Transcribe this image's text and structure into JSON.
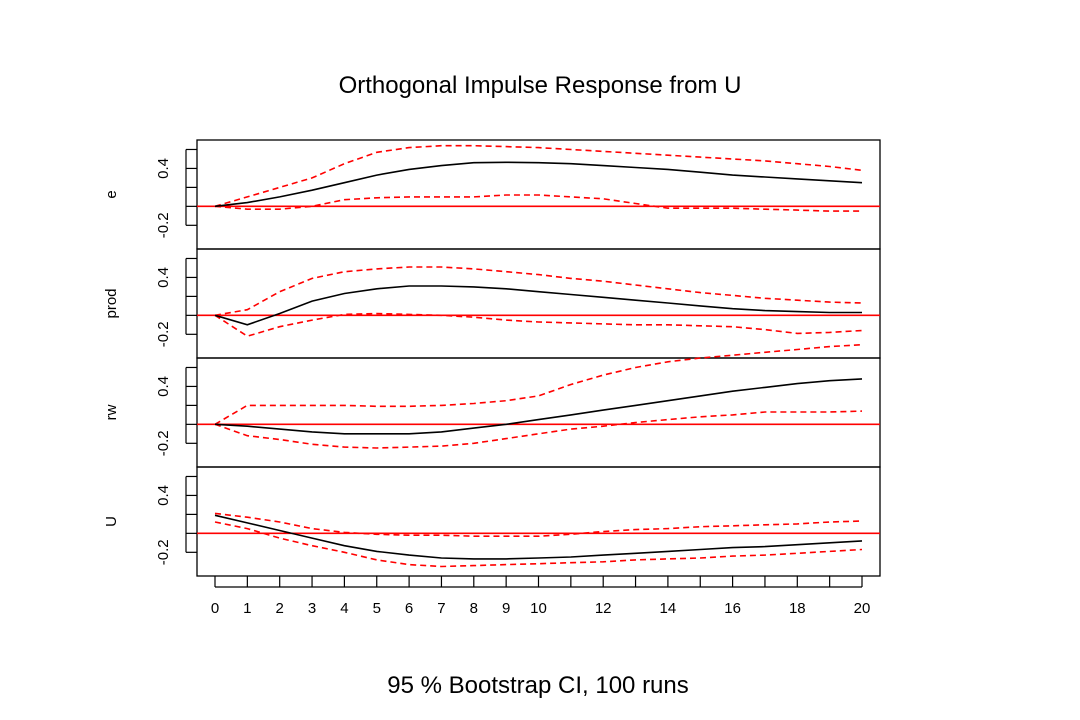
{
  "chart_data": {
    "type": "line",
    "title": "Orthogonal Impulse Response from U",
    "xlabel": "95 % Bootstrap CI,  100 runs",
    "x": [
      0,
      1,
      2,
      3,
      4,
      5,
      6,
      7,
      8,
      9,
      10,
      11,
      12,
      13,
      14,
      15,
      16,
      17,
      18,
      19,
      20
    ],
    "x_tick_labels": [
      "0",
      "1",
      "2",
      "3",
      "4",
      "5",
      "6",
      "7",
      "8",
      "9",
      "10",
      "12",
      "14",
      "16",
      "18",
      "20"
    ],
    "ylim": [
      -0.45,
      0.7
    ],
    "y_tick_labels": [
      "-0.2",
      "0.4"
    ],
    "series_styles": {
      "response": {
        "color": "#000000",
        "dash": "solid"
      },
      "ci": {
        "color": "#ff0000",
        "dash": "dashed"
      },
      "zero_line": {
        "color": "#ff0000",
        "dash": "solid"
      }
    },
    "panels": [
      {
        "name": "e",
        "response": [
          0.0,
          0.04,
          0.1,
          0.17,
          0.25,
          0.33,
          0.39,
          0.43,
          0.46,
          0.465,
          0.46,
          0.45,
          0.43,
          0.41,
          0.39,
          0.36,
          0.33,
          0.31,
          0.29,
          0.27,
          0.25
        ],
        "upper": [
          0.0,
          0.1,
          0.2,
          0.3,
          0.45,
          0.57,
          0.62,
          0.64,
          0.64,
          0.63,
          0.62,
          0.6,
          0.58,
          0.56,
          0.54,
          0.52,
          0.5,
          0.48,
          0.45,
          0.42,
          0.38
        ],
        "lower": [
          0.0,
          -0.03,
          -0.03,
          0.0,
          0.07,
          0.09,
          0.1,
          0.1,
          0.1,
          0.12,
          0.12,
          0.1,
          0.08,
          0.03,
          -0.02,
          -0.02,
          -0.02,
          -0.03,
          -0.04,
          -0.05,
          -0.05
        ]
      },
      {
        "name": "prod",
        "response": [
          0.0,
          -0.1,
          0.02,
          0.15,
          0.23,
          0.28,
          0.31,
          0.31,
          0.3,
          0.28,
          0.25,
          0.22,
          0.19,
          0.16,
          0.13,
          0.1,
          0.07,
          0.05,
          0.04,
          0.03,
          0.03
        ],
        "upper": [
          0.0,
          0.06,
          0.25,
          0.39,
          0.46,
          0.49,
          0.51,
          0.51,
          0.49,
          0.46,
          0.43,
          0.39,
          0.36,
          0.32,
          0.28,
          0.24,
          0.21,
          0.18,
          0.16,
          0.14,
          0.13
        ],
        "lower": [
          0.0,
          -0.22,
          -0.12,
          -0.05,
          0.01,
          0.02,
          0.01,
          0.0,
          -0.02,
          -0.05,
          -0.07,
          -0.08,
          -0.09,
          -0.1,
          -0.1,
          -0.11,
          -0.12,
          -0.15,
          -0.19,
          -0.18,
          -0.16
        ]
      },
      {
        "name": "rw",
        "response": [
          0.0,
          -0.02,
          -0.05,
          -0.08,
          -0.1,
          -0.1,
          -0.1,
          -0.08,
          -0.04,
          0.0,
          0.05,
          0.1,
          0.15,
          0.2,
          0.25,
          0.3,
          0.35,
          0.39,
          0.43,
          0.46,
          0.48
        ],
        "upper": [
          0.0,
          0.2,
          0.2,
          0.2,
          0.2,
          0.19,
          0.19,
          0.2,
          0.22,
          0.25,
          0.3,
          0.42,
          0.52,
          0.6,
          0.66,
          0.7,
          0.73,
          0.76,
          0.79,
          0.82,
          0.84
        ],
        "lower": [
          0.0,
          -0.12,
          -0.16,
          -0.21,
          -0.24,
          -0.25,
          -0.24,
          -0.23,
          -0.2,
          -0.15,
          -0.1,
          -0.05,
          -0.02,
          0.02,
          0.05,
          0.08,
          0.1,
          0.13,
          0.13,
          0.13,
          0.14
        ]
      },
      {
        "name": "U",
        "response": [
          0.19,
          0.11,
          0.03,
          -0.05,
          -0.13,
          -0.19,
          -0.23,
          -0.26,
          -0.27,
          -0.27,
          -0.26,
          -0.25,
          -0.23,
          -0.21,
          -0.19,
          -0.17,
          -0.15,
          -0.14,
          -0.12,
          -0.1,
          -0.08
        ],
        "upper": [
          0.21,
          0.17,
          0.12,
          0.05,
          0.01,
          -0.01,
          -0.02,
          -0.02,
          -0.03,
          -0.03,
          -0.03,
          -0.01,
          0.02,
          0.04,
          0.05,
          0.07,
          0.08,
          0.09,
          0.1,
          0.12,
          0.13
        ],
        "lower": [
          0.12,
          0.05,
          -0.05,
          -0.13,
          -0.2,
          -0.28,
          -0.33,
          -0.35,
          -0.34,
          -0.33,
          -0.32,
          -0.31,
          -0.3,
          -0.28,
          -0.27,
          -0.26,
          -0.24,
          -0.23,
          -0.21,
          -0.19,
          -0.17
        ]
      }
    ]
  }
}
